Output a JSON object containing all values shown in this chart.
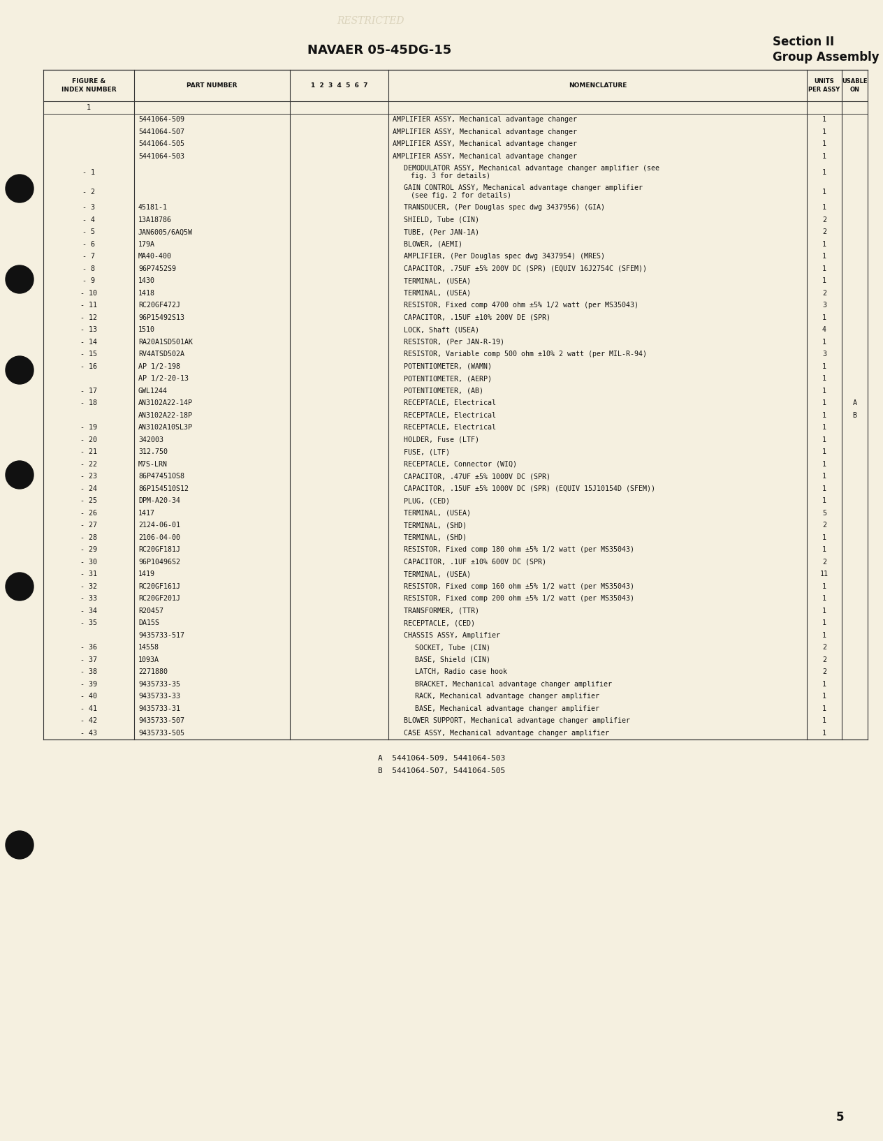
{
  "page_bg": "#f5f0e0",
  "header_title_center": "NAVAER 05-45DG-15",
  "header_title_right1": "Section II",
  "header_title_right2": "Group Assembly Parts List",
  "faded_top_text": "RESTRICTED",
  "rows": [
    {
      "fig": "1",
      "part": "",
      "indent": 0,
      "nomenclature": "",
      "units": "",
      "usable": ""
    },
    {
      "fig": "",
      "part": "5441064-509",
      "indent": 0,
      "nomenclature": "AMPLIFIER ASSY, Mechanical advantage changer",
      "units": "1",
      "usable": ""
    },
    {
      "fig": "",
      "part": "5441064-507",
      "indent": 0,
      "nomenclature": "AMPLIFIER ASSY, Mechanical advantage changer",
      "units": "1",
      "usable": ""
    },
    {
      "fig": "",
      "part": "5441064-505",
      "indent": 0,
      "nomenclature": "AMPLIFIER ASSY, Mechanical advantage changer",
      "units": "1",
      "usable": ""
    },
    {
      "fig": "",
      "part": "5441064-503",
      "indent": 0,
      "nomenclature": "AMPLIFIER ASSY, Mechanical advantage changer",
      "units": "1",
      "usable": ""
    },
    {
      "fig": "- 1",
      "part": "",
      "indent": 1,
      "nomenclature": "DEMODULATOR ASSY, Mechanical advantage changer amplifier (see\n    fig. 3 for details)",
      "units": "1",
      "usable": ""
    },
    {
      "fig": "- 2",
      "part": "",
      "indent": 1,
      "nomenclature": "GAIN CONTROL ASSY, Mechanical advantage changer amplifier\n    (see fig. 2 for details)",
      "units": "1",
      "usable": ""
    },
    {
      "fig": "- 3",
      "part": "45181-1",
      "indent": 1,
      "nomenclature": "TRANSDUCER, (Per Douglas spec dwg 3437956) (GIA)",
      "units": "1",
      "usable": ""
    },
    {
      "fig": "- 4",
      "part": "13A18786",
      "indent": 1,
      "nomenclature": "SHIELD, Tube (CIN)",
      "units": "2",
      "usable": ""
    },
    {
      "fig": "- 5",
      "part": "JAN6005/6AQ5W",
      "indent": 1,
      "nomenclature": "TUBE, (Per JAN-1A)",
      "units": "2",
      "usable": ""
    },
    {
      "fig": "- 6",
      "part": "179A",
      "indent": 1,
      "nomenclature": "BLOWER, (AEMI)",
      "units": "1",
      "usable": ""
    },
    {
      "fig": "- 7",
      "part": "MA40-400",
      "indent": 1,
      "nomenclature": "AMPLIFIER, (Per Douglas spec dwg 3437954) (MRES)",
      "units": "1",
      "usable": ""
    },
    {
      "fig": "- 8",
      "part": "96P7452S9",
      "indent": 1,
      "nomenclature": "CAPACITOR, .75UF ±5% 200V DC (SPR) (EQUIV 16J2754C (SFEM))",
      "units": "1",
      "usable": ""
    },
    {
      "fig": "- 9",
      "part": "1430",
      "indent": 1,
      "nomenclature": "TERMINAL, (USEA)",
      "units": "1",
      "usable": ""
    },
    {
      "fig": "- 10",
      "part": "1418",
      "indent": 1,
      "nomenclature": "TERMINAL, (USEA)",
      "units": "2",
      "usable": ""
    },
    {
      "fig": "- 11",
      "part": "RC20GF472J",
      "indent": 1,
      "nomenclature": "RESISTOR, Fixed comp 4700 ohm ±5% 1/2 watt (per MS35043)",
      "units": "3",
      "usable": ""
    },
    {
      "fig": "- 12",
      "part": "96P15492S13",
      "indent": 1,
      "nomenclature": "CAPACITOR, .15UF ±10% 200V DE (SPR)",
      "units": "1",
      "usable": ""
    },
    {
      "fig": "- 13",
      "part": "1510",
      "indent": 1,
      "nomenclature": "LOCK, Shaft (USEA)",
      "units": "4",
      "usable": ""
    },
    {
      "fig": "- 14",
      "part": "RA20A1SD501AK",
      "indent": 1,
      "nomenclature": "RESISTOR, (Per JAN-R-19)",
      "units": "1",
      "usable": ""
    },
    {
      "fig": "- 15",
      "part": "RV4ATSD502A",
      "indent": 1,
      "nomenclature": "RESISTOR, Variable comp 500 ohm ±10% 2 watt (per MIL-R-94)",
      "units": "3",
      "usable": ""
    },
    {
      "fig": "- 16",
      "part": "AP 1/2-198",
      "indent": 1,
      "nomenclature": "POTENTIOMETER, (WAMN)",
      "units": "1",
      "usable": ""
    },
    {
      "fig": "",
      "part": "AP 1/2-20-13",
      "indent": 1,
      "nomenclature": "POTENTIOMETER, (AERP)",
      "units": "1",
      "usable": ""
    },
    {
      "fig": "- 17",
      "part": "GWL1244",
      "indent": 1,
      "nomenclature": "POTENTIOMETER, (AB)",
      "units": "1",
      "usable": ""
    },
    {
      "fig": "- 18",
      "part": "AN3102A22-14P",
      "indent": 1,
      "nomenclature": "RECEPTACLE, Electrical",
      "units": "1",
      "usable": "A"
    },
    {
      "fig": "",
      "part": "AN3102A22-18P",
      "indent": 1,
      "nomenclature": "RECEPTACLE, Electrical",
      "units": "1",
      "usable": "B"
    },
    {
      "fig": "- 19",
      "part": "AN3102A10SL3P",
      "indent": 1,
      "nomenclature": "RECEPTACLE, Electrical",
      "units": "1",
      "usable": ""
    },
    {
      "fig": "- 20",
      "part": "342003",
      "indent": 1,
      "nomenclature": "HOLDER, Fuse (LTF)",
      "units": "1",
      "usable": ""
    },
    {
      "fig": "- 21",
      "part": "312.750",
      "indent": 1,
      "nomenclature": "FUSE, (LTF)",
      "units": "1",
      "usable": ""
    },
    {
      "fig": "- 22",
      "part": "M7S-LRN",
      "indent": 1,
      "nomenclature": "RECEPTACLE, Connector (WIQ)",
      "units": "1",
      "usable": ""
    },
    {
      "fig": "- 23",
      "part": "86P47451OS8",
      "indent": 1,
      "nomenclature": "CAPACITOR, .47UF ±5% 1000V DC (SPR)",
      "units": "1",
      "usable": ""
    },
    {
      "fig": "- 24",
      "part": "86P154510S12",
      "indent": 1,
      "nomenclature": "CAPACITOR, .15UF ±5% 1000V DC (SPR) (EQUIV 15J10154D (SFEM))",
      "units": "1",
      "usable": ""
    },
    {
      "fig": "- 25",
      "part": "DPM-A20-34",
      "indent": 1,
      "nomenclature": "PLUG, (CED)",
      "units": "1",
      "usable": ""
    },
    {
      "fig": "- 26",
      "part": "1417",
      "indent": 1,
      "nomenclature": "TERMINAL, (USEA)",
      "units": "5",
      "usable": ""
    },
    {
      "fig": "- 27",
      "part": "2124-06-01",
      "indent": 1,
      "nomenclature": "TERMINAL, (SHD)",
      "units": "2",
      "usable": ""
    },
    {
      "fig": "- 28",
      "part": "2106-04-00",
      "indent": 1,
      "nomenclature": "TERMINAL, (SHD)",
      "units": "1",
      "usable": ""
    },
    {
      "fig": "- 29",
      "part": "RC20GF181J",
      "indent": 1,
      "nomenclature": "RESISTOR, Fixed comp 180 ohm ±5% 1/2 watt (per MS35043)",
      "units": "1",
      "usable": ""
    },
    {
      "fig": "- 30",
      "part": "96P10496S2",
      "indent": 1,
      "nomenclature": "CAPACITOR, .1UF ±10% 600V DC (SPR)",
      "units": "2",
      "usable": ""
    },
    {
      "fig": "- 31",
      "part": "1419",
      "indent": 1,
      "nomenclature": "TERMINAL, (USEA)",
      "units": "11",
      "usable": ""
    },
    {
      "fig": "- 32",
      "part": "RC20GF161J",
      "indent": 1,
      "nomenclature": "RESISTOR, Fixed comp 160 ohm ±5% 1/2 watt (per MS35043)",
      "units": "1",
      "usable": ""
    },
    {
      "fig": "- 33",
      "part": "RC20GF201J",
      "indent": 1,
      "nomenclature": "RESISTOR, Fixed comp 200 ohm ±5% 1/2 watt (per MS35043)",
      "units": "1",
      "usable": ""
    },
    {
      "fig": "- 34",
      "part": "R20457",
      "indent": 1,
      "nomenclature": "TRANSFORMER, (TTR)",
      "units": "1",
      "usable": ""
    },
    {
      "fig": "- 35",
      "part": "DA15S",
      "indent": 1,
      "nomenclature": "RECEPTACLE, (CED)",
      "units": "1",
      "usable": ""
    },
    {
      "fig": "",
      "part": "9435733-517",
      "indent": 1,
      "nomenclature": "CHASSIS ASSY, Amplifier",
      "units": "1",
      "usable": ""
    },
    {
      "fig": "- 36",
      "part": "14558",
      "indent": 2,
      "nomenclature": "SOCKET, Tube (CIN)",
      "units": "2",
      "usable": ""
    },
    {
      "fig": "- 37",
      "part": "1093A",
      "indent": 2,
      "nomenclature": "BASE, Shield (CIN)",
      "units": "2",
      "usable": ""
    },
    {
      "fig": "- 38",
      "part": "2271880",
      "indent": 2,
      "nomenclature": "LATCH, Radio case hook",
      "units": "2",
      "usable": ""
    },
    {
      "fig": "- 39",
      "part": "9435733-35",
      "indent": 2,
      "nomenclature": "BRACKET, Mechanical advantage changer amplifier",
      "units": "1",
      "usable": ""
    },
    {
      "fig": "- 40",
      "part": "9435733-33",
      "indent": 2,
      "nomenclature": "RACK, Mechanical advantage changer amplifier",
      "units": "1",
      "usable": ""
    },
    {
      "fig": "- 41",
      "part": "9435733-31",
      "indent": 2,
      "nomenclature": "BASE, Mechanical advantage changer amplifier",
      "units": "1",
      "usable": ""
    },
    {
      "fig": "- 42",
      "part": "9435733-507",
      "indent": 1,
      "nomenclature": "BLOWER SUPPORT, Mechanical advantage changer amplifier",
      "units": "1",
      "usable": ""
    },
    {
      "fig": "- 43",
      "part": "9435733-505",
      "indent": 1,
      "nomenclature": "CASE ASSY, Mechanical advantage changer amplifier",
      "units": "1",
      "usable": ""
    }
  ],
  "footnotes": [
    "A  5441064-509, 5441064-503",
    "B  5441064-507, 5441064-505"
  ],
  "page_number": "5",
  "circle_positions_y": [
    270,
    400,
    530,
    680,
    840,
    1210
  ]
}
